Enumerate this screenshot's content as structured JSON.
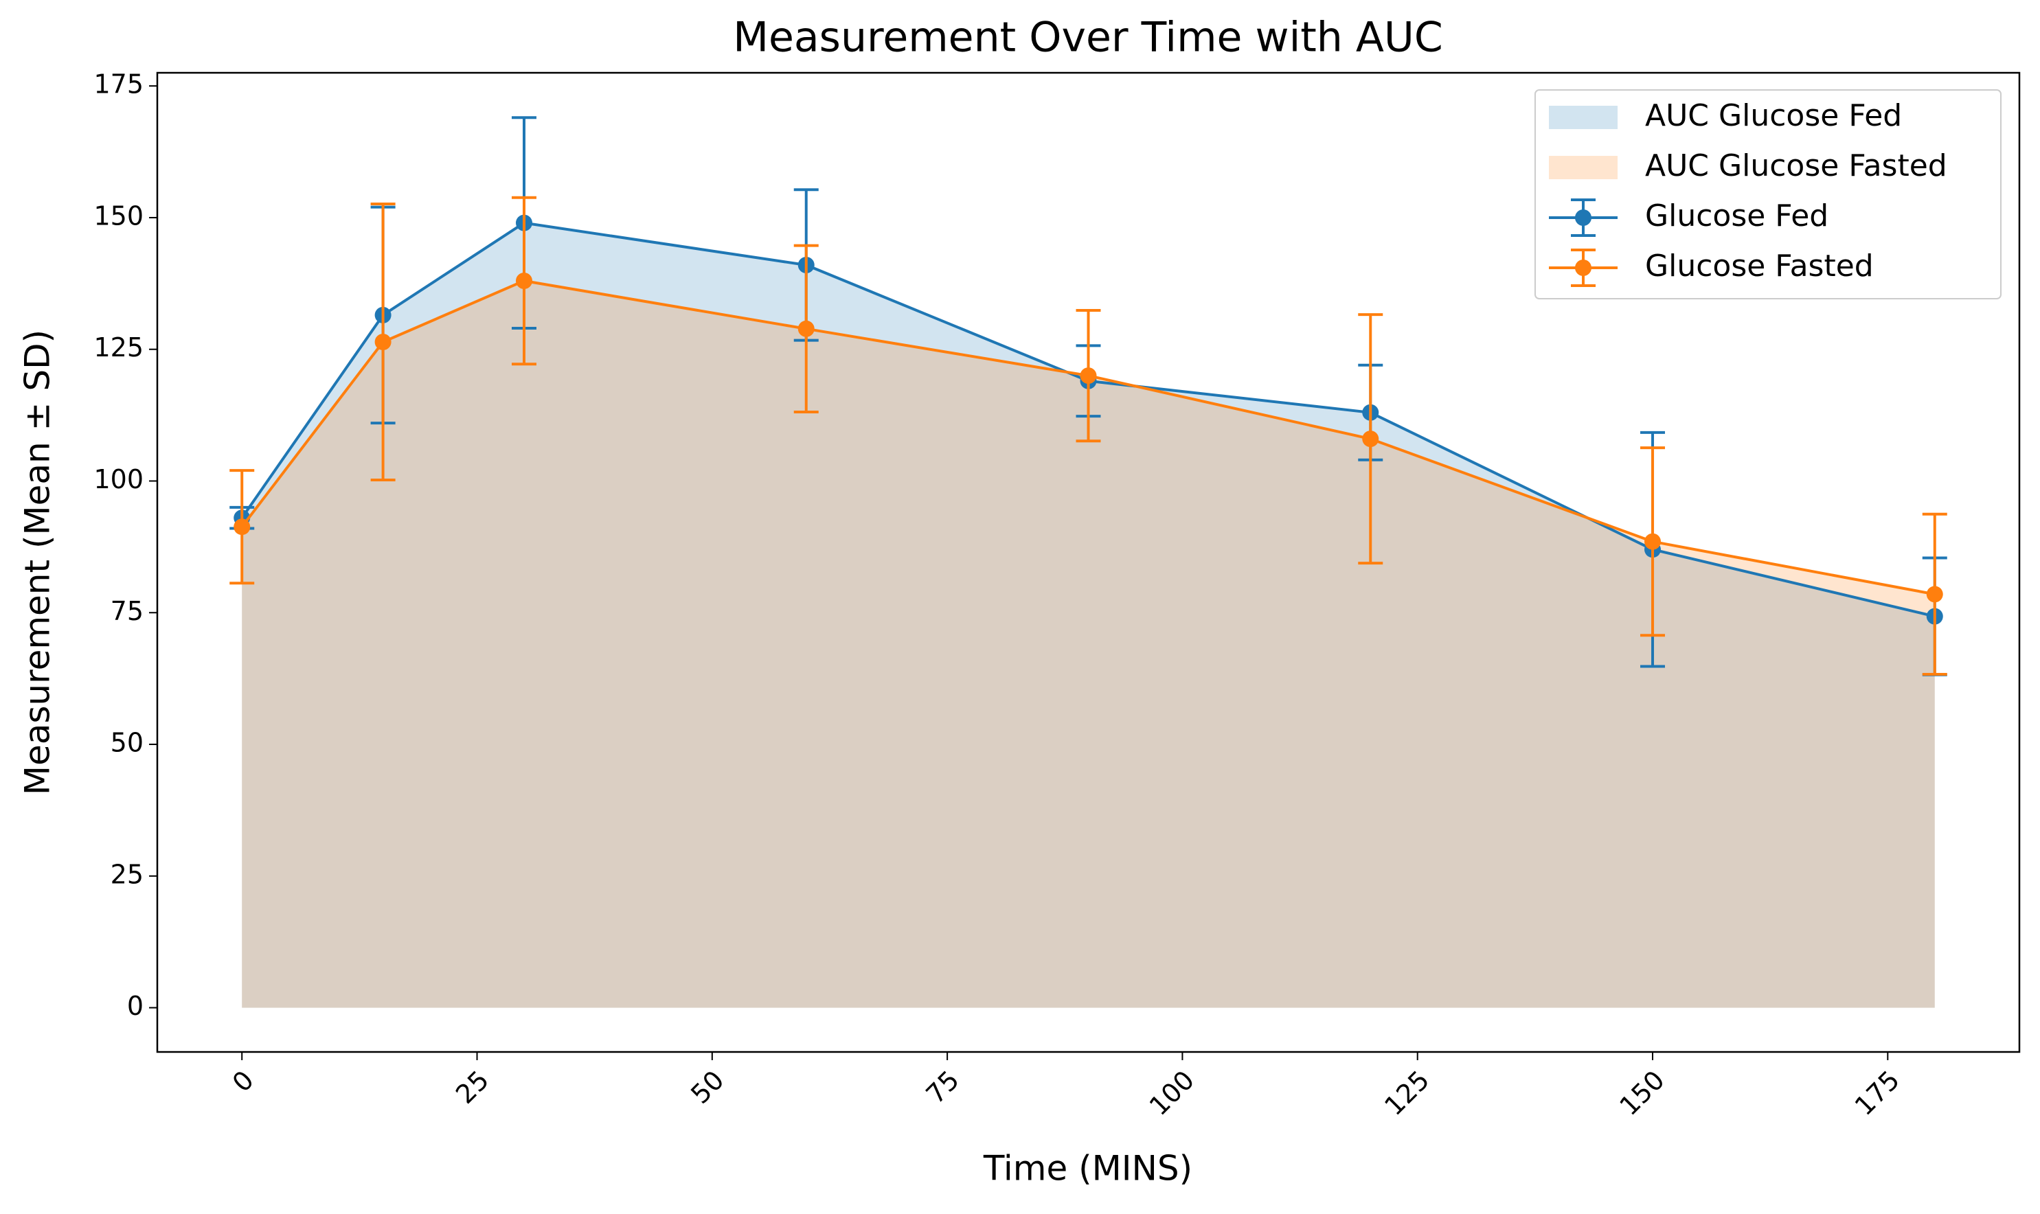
{
  "chart_data": {
    "type": "line",
    "title": "Measurement Over Time with AUC",
    "x_label": "Time (MINS)",
    "y_label": "Measurement (Mean ± SD)",
    "x": [
      0,
      15,
      30,
      60,
      90,
      120,
      150,
      180
    ],
    "series": [
      {
        "name": "Glucose Fed",
        "auc_label": "AUC Glucose Fed",
        "color": "#1f77b4",
        "values": [
          93,
          131.5,
          149,
          141,
          119,
          113,
          87,
          74.3
        ],
        "sd": [
          2,
          20.5,
          20,
          14.3,
          6.7,
          9,
          22.2,
          11.1
        ]
      },
      {
        "name": "Glucose Fasted",
        "auc_label": "AUC Glucose Fasted",
        "color": "#ff7f0e",
        "values": [
          91.3,
          126.4,
          138,
          128.9,
          120,
          108,
          88.5,
          78.5
        ],
        "sd": [
          10.7,
          26.2,
          15.8,
          15.8,
          12.4,
          23.6,
          17.8,
          15.2
        ]
      }
    ],
    "xlim": [
      -9,
      189
    ],
    "ylim": [
      -8.4,
      177.5
    ],
    "xticks": [
      0,
      25,
      50,
      75,
      100,
      125,
      150,
      175
    ],
    "yticks": [
      0,
      25,
      50,
      75,
      100,
      125,
      150,
      175
    ],
    "area_opacity": 0.2,
    "legend": "upper right"
  }
}
